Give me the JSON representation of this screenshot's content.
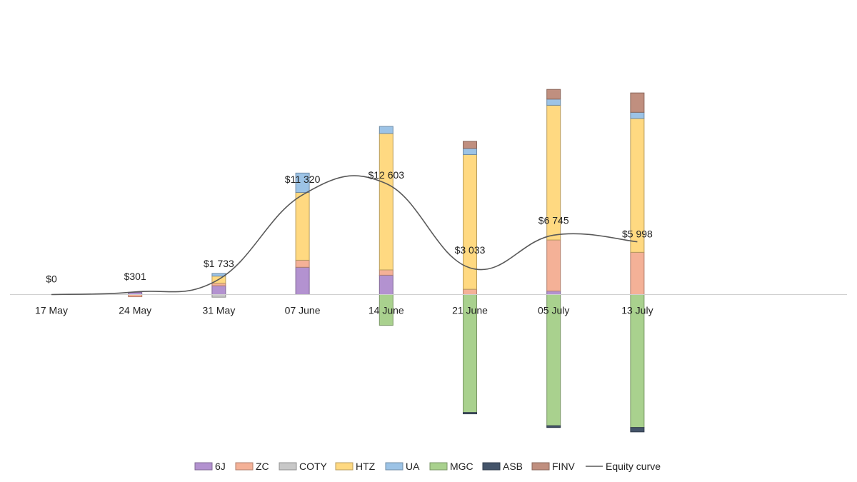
{
  "chart_data": {
    "type": "bar",
    "stacked": true,
    "categories": [
      "17 May",
      "24 May",
      "31 May",
      "07 June",
      "14 June",
      "21 June",
      "05 July",
      "13 July"
    ],
    "series": [
      {
        "name": "6J",
        "color": "#b392d0",
        "values": [
          0,
          250,
          1000,
          3100,
          2200,
          0,
          400,
          0
        ]
      },
      {
        "name": "ZC",
        "color": "#f4b197",
        "values": [
          0,
          -250,
          300,
          800,
          600,
          600,
          5800,
          4800
        ]
      },
      {
        "name": "COTY",
        "color": "#c8c8c8",
        "values": [
          0,
          0,
          -300,
          0,
          0,
          0,
          0,
          0
        ]
      },
      {
        "name": "HTZ",
        "color": "#ffd981",
        "values": [
          0,
          0,
          800,
          7700,
          15500,
          15300,
          15300,
          15200
        ]
      },
      {
        "name": "UA",
        "color": "#9cc3e6",
        "values": [
          0,
          0,
          300,
          2200,
          800,
          700,
          700,
          700
        ]
      },
      {
        "name": "MGC",
        "color": "#a9d18e",
        "values": [
          0,
          0,
          0,
          0,
          -3500,
          -13400,
          -14900,
          -15100
        ]
      },
      {
        "name": "ASB",
        "color": "#44546a",
        "values": [
          0,
          0,
          0,
          0,
          0,
          -150,
          -200,
          -500
        ]
      },
      {
        "name": "FINV",
        "color": "#c08f7f",
        "values": [
          0,
          0,
          0,
          0,
          0,
          800,
          1100,
          2200
        ]
      }
    ],
    "equity_curve": {
      "name": "Equity curve",
      "color": "#595959",
      "values": [
        0,
        301,
        1733,
        11320,
        12603,
        3033,
        6745,
        5998
      ],
      "labels": [
        "$0",
        "$301",
        "$1 733",
        "$11 320",
        "$12 603",
        "$3 033",
        "$6 745",
        "$5 998"
      ]
    },
    "title": "",
    "xlabel": "",
    "ylabel": "",
    "ylim": [
      -16000,
      24000
    ],
    "grid": false,
    "legend": "bottom"
  }
}
